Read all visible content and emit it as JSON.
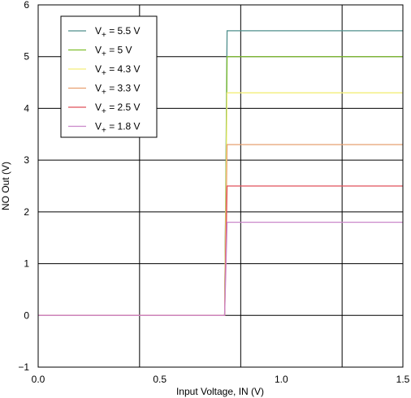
{
  "chart_data": {
    "type": "line",
    "title": "",
    "xlabel": "Input Voltage, IN (V)",
    "ylabel": "NO Out (V)",
    "xlim": [
      0.0,
      1.5
    ],
    "ylim": [
      -1,
      6
    ],
    "xticks": [
      0.0,
      0.5,
      1.0,
      1.5
    ],
    "xtick_labels": [
      "0.0",
      "0.5",
      "1.0",
      "1.5"
    ],
    "yticks": [
      -1,
      0,
      1,
      2,
      3,
      4,
      5,
      6
    ],
    "ytick_labels": [
      "−1",
      "0",
      "1",
      "2",
      "3",
      "4",
      "5",
      "6"
    ],
    "x_gridlines": [
      0.417,
      0.833,
      1.25
    ],
    "grid": true,
    "legend_position": "top-left",
    "series": [
      {
        "name": "5.5 V",
        "color": "#4f8f8c",
        "x": [
          0.0,
          0.767,
          0.777,
          1.5
        ],
        "y": [
          0.0,
          0.0,
          5.5,
          5.5
        ]
      },
      {
        "name": "5 V",
        "color": "#7fbf2e",
        "x": [
          0.0,
          0.767,
          0.777,
          1.5
        ],
        "y": [
          0.0,
          0.0,
          5.0,
          5.0
        ]
      },
      {
        "name": "4.3 V",
        "color": "#f3ee7a",
        "x": [
          0.0,
          0.767,
          0.777,
          1.5
        ],
        "y": [
          0.0,
          0.0,
          4.3,
          4.3
        ]
      },
      {
        "name": "3.3 V",
        "color": "#e8a070",
        "x": [
          0.0,
          0.767,
          0.777,
          1.5
        ],
        "y": [
          0.0,
          0.0,
          3.3,
          3.3
        ]
      },
      {
        "name": "2.5 V",
        "color": "#e0525a",
        "x": [
          0.0,
          0.767,
          0.777,
          1.5
        ],
        "y": [
          0.0,
          0.0,
          2.5,
          2.5
        ]
      },
      {
        "name": "1.8 V",
        "color": "#c987c9",
        "x": [
          0.0,
          0.767,
          0.777,
          1.5
        ],
        "y": [
          0.0,
          0.0,
          1.8,
          1.8
        ]
      }
    ]
  }
}
